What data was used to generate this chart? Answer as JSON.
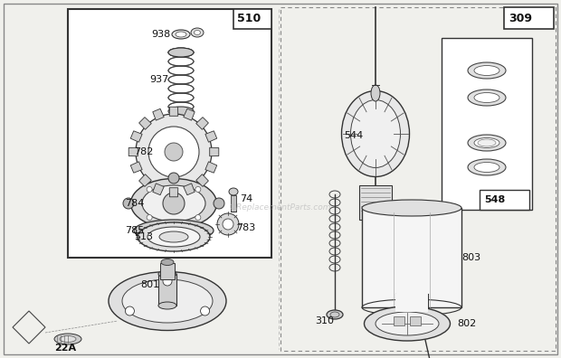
{
  "bg_color": "#f0f0ec",
  "border_color": "#444444",
  "text_color": "#111111",
  "watermark": "©ReplacementParts.com",
  "figsize": [
    6.2,
    3.96
  ],
  "dpi": 100,
  "xlim": [
    0,
    620
  ],
  "ylim": [
    0,
    396
  ]
}
